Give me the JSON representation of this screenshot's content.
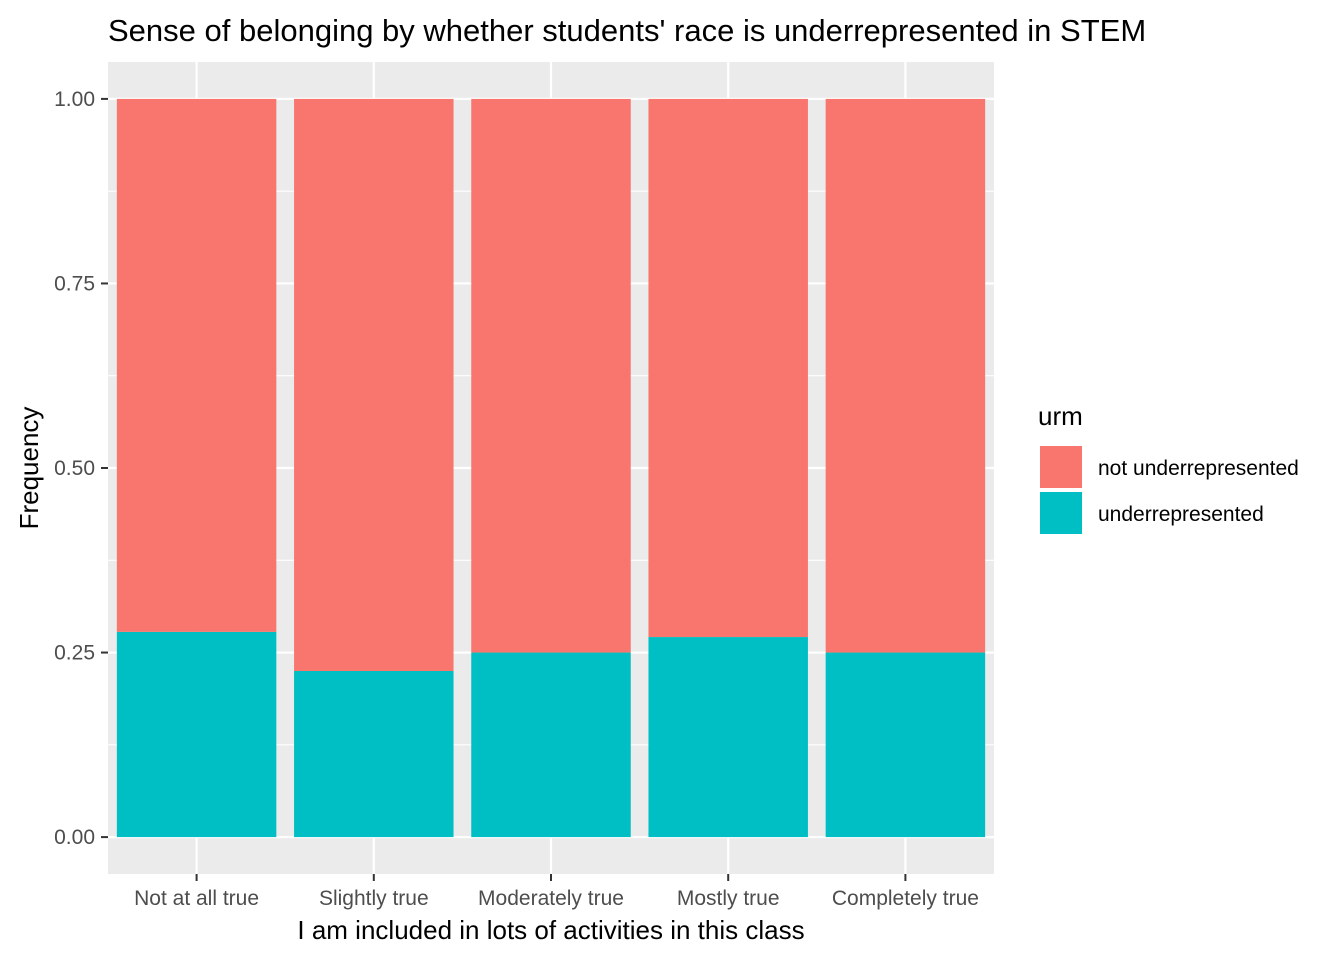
{
  "chart_data": {
    "type": "bar",
    "stacked": true,
    "title": "Sense of belonging by whether students' race is underrepresented in STEM",
    "xlabel": "I am included in lots of activities in this class",
    "ylabel": "Frequency",
    "categories": [
      "Not at all true",
      "Slightly true",
      "Moderately true",
      "Mostly true",
      "Completely true"
    ],
    "series": [
      {
        "name": "not underrepresented",
        "color": "#F8766D",
        "values": [
          0.722,
          0.775,
          0.75,
          0.729,
          0.75
        ]
      },
      {
        "name": "underrepresented",
        "color": "#00BFC4",
        "values": [
          0.278,
          0.225,
          0.25,
          0.271,
          0.25
        ]
      }
    ],
    "ylim": [
      -0.05,
      1.05
    ],
    "yticks": [
      0.0,
      0.25,
      0.5,
      0.75,
      1.0
    ],
    "ytick_labels": [
      "0.00",
      "0.25",
      "0.50",
      "0.75",
      "1.00"
    ],
    "grid": true,
    "legend": {
      "title": "urm",
      "position": "right",
      "entries": [
        "not underrepresented",
        "underrepresented"
      ]
    },
    "colors": {
      "panel_background": "#EBEBEB",
      "grid": "#FFFFFF",
      "tick_label": "#4D4D4D",
      "tick_mark": "#333333"
    }
  }
}
